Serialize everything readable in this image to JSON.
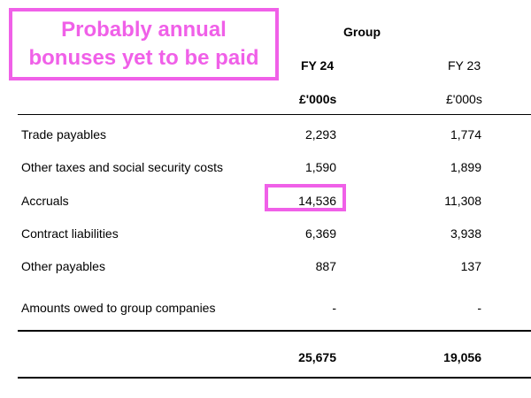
{
  "annotation": {
    "line1": "Probably annual",
    "line2": "bonuses yet to be paid",
    "color": "#f060e8"
  },
  "header": {
    "group": "Group",
    "fy24": "FY 24",
    "fy23": "FY 23",
    "unit24": "£'000s",
    "unit23": "£'000s"
  },
  "rows": [
    {
      "label": "Trade payables",
      "fy24": "2,293",
      "fy23": "1,774"
    },
    {
      "label": "Other taxes and social security costs",
      "fy24": "1,590",
      "fy23": "1,899"
    },
    {
      "label": "Accruals",
      "fy24": "14,536",
      "fy23": "11,308"
    },
    {
      "label": "Contract liabilities",
      "fy24": "6,369",
      "fy23": "3,938"
    },
    {
      "label": "Other payables",
      "fy24": "887",
      "fy23": "137"
    },
    {
      "label": "Amounts owed to group companies",
      "fy24": "-",
      "fy23": "-"
    }
  ],
  "total": {
    "fy24": "25,675",
    "fy23": "19,056"
  }
}
